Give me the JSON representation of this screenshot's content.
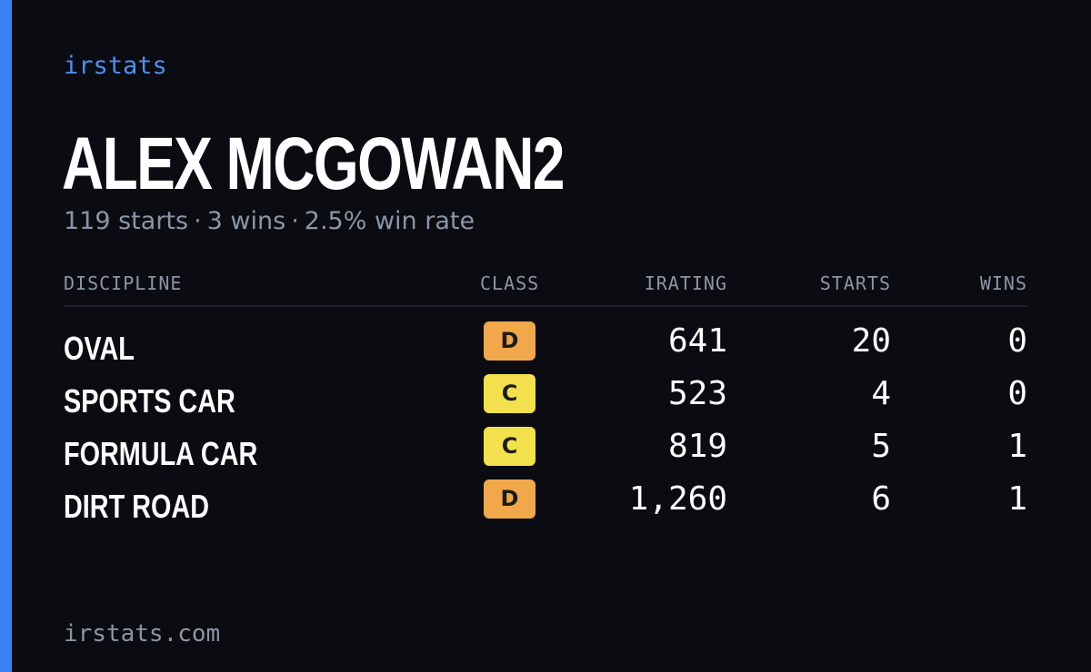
{
  "brand": "irstats",
  "driver": {
    "name": "ALEX MCGOWAN2"
  },
  "summary": {
    "starts": "119 starts",
    "wins": "3 wins",
    "win_rate": "2.5% win rate",
    "separator": "·"
  },
  "table": {
    "headers": {
      "discipline": "DISCIPLINE",
      "class": "CLASS",
      "irating": "IRATING",
      "starts": "STARTS",
      "wins": "WINS"
    },
    "rows": [
      {
        "discipline": "OVAL",
        "class": "D",
        "class_color": "#f0a84a",
        "irating": "641",
        "starts": "20",
        "wins": "0"
      },
      {
        "discipline": "SPORTS CAR",
        "class": "C",
        "class_color": "#f2e14c",
        "irating": "523",
        "starts": "4",
        "wins": "0"
      },
      {
        "discipline": "FORMULA CAR",
        "class": "C",
        "class_color": "#f2e14c",
        "irating": "819",
        "starts": "5",
        "wins": "1"
      },
      {
        "discipline": "DIRT ROAD",
        "class": "D",
        "class_color": "#f0a84a",
        "irating": "1,260",
        "starts": "6",
        "wins": "1"
      }
    ]
  },
  "footer": {
    "site": "irstats.com"
  },
  "colors": {
    "accent": "#3b82f6",
    "background": "#0a0c12",
    "muted_text": "#8c95a6",
    "brand_text": "#4a90f2"
  }
}
